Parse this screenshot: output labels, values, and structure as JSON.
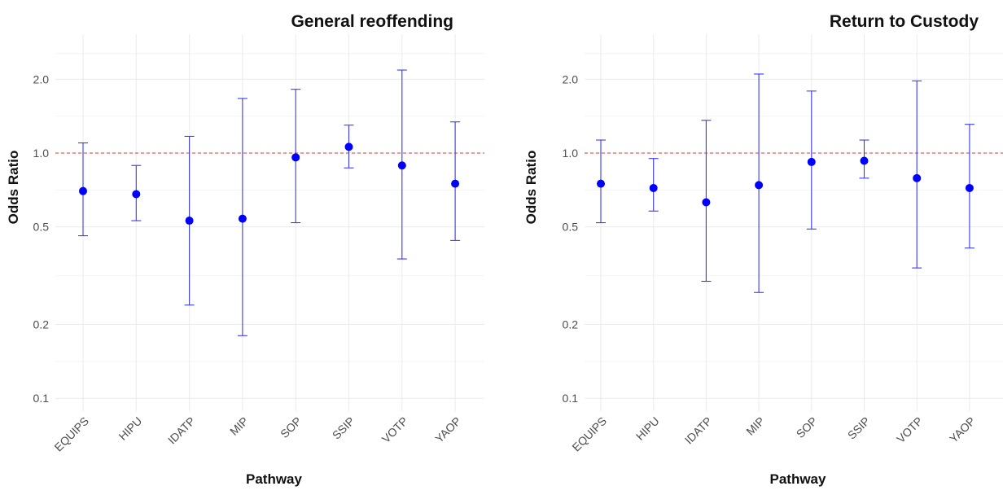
{
  "colors": {
    "point": "#0000ff",
    "errorbar": "#3a3af0",
    "reference_line": "#e06060",
    "grid": "#ebebeb"
  },
  "chart_data": [
    {
      "type": "scatter",
      "title": "General reoffending",
      "xlabel": "Pathway",
      "ylabel": "Odds Ratio",
      "y_scale": "log",
      "ylim": [
        0.09,
        2.7
      ],
      "y_ticks": [
        0.1,
        0.2,
        0.5,
        1.0,
        2.0
      ],
      "y_tick_labels": [
        "0.1",
        "0.2",
        "0.5",
        "1.0",
        "2.0"
      ],
      "reference_line": 1.0,
      "grid": true,
      "categories": [
        "EQUIPS",
        "HIPU",
        "IDATP",
        "MIP",
        "SOP",
        "SSIP",
        "VOTP",
        "YAOP"
      ],
      "values": [
        0.7,
        0.68,
        0.53,
        0.54,
        0.96,
        1.06,
        0.89,
        0.75
      ],
      "lower": [
        0.46,
        0.53,
        0.24,
        0.18,
        0.52,
        0.87,
        0.37,
        0.44
      ],
      "upper": [
        1.1,
        0.89,
        1.17,
        1.67,
        1.82,
        1.3,
        2.18,
        1.34
      ]
    },
    {
      "type": "scatter",
      "title": "Return to Custody",
      "xlabel": "Pathway",
      "ylabel": "Odds Ratio",
      "y_scale": "log",
      "ylim": [
        0.09,
        2.7
      ],
      "y_ticks": [
        0.1,
        0.2,
        0.5,
        1.0,
        2.0
      ],
      "y_tick_labels": [
        "0.1",
        "0.2",
        "0.5",
        "1.0",
        "2.0"
      ],
      "reference_line": 1.0,
      "grid": true,
      "categories": [
        "EQUIPS",
        "HIPU",
        "IDATP",
        "MIP",
        "SOP",
        "SSIP",
        "VOTP",
        "YAOP"
      ],
      "values": [
        0.75,
        0.72,
        0.63,
        0.74,
        0.92,
        0.93,
        0.79,
        0.72
      ],
      "lower": [
        0.52,
        0.58,
        0.3,
        0.27,
        0.49,
        0.79,
        0.34,
        0.41
      ],
      "upper": [
        1.13,
        0.95,
        1.36,
        2.1,
        1.79,
        1.13,
        1.97,
        1.31
      ]
    }
  ]
}
